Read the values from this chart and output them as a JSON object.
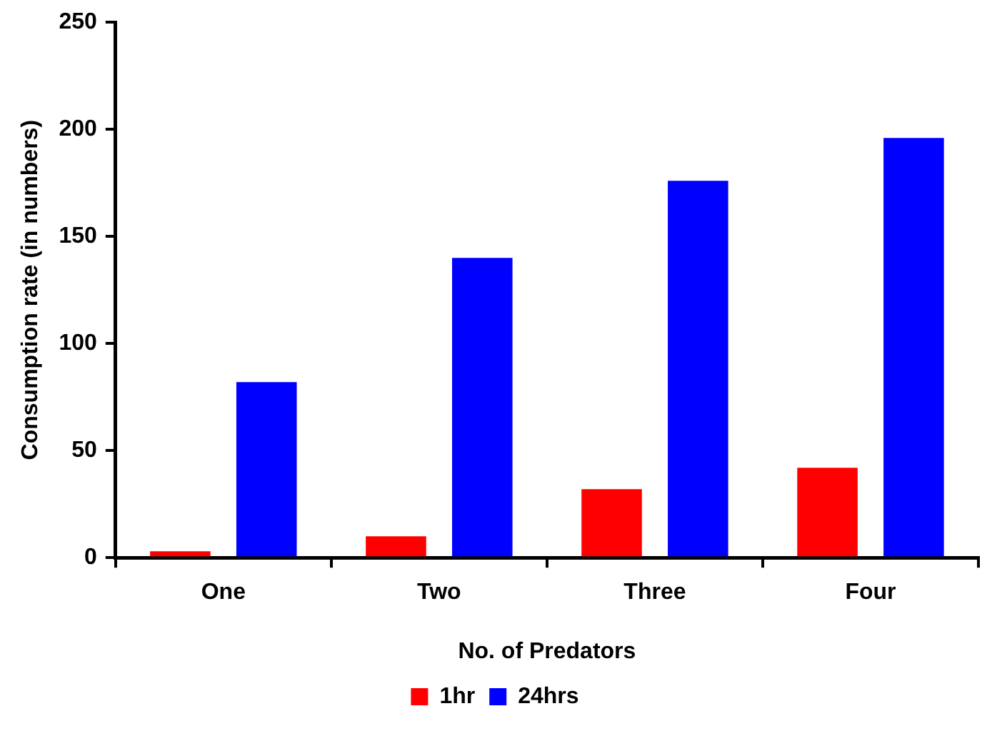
{
  "chart_data": {
    "type": "bar",
    "xlabel": "No. of Predators",
    "ylabel": "Consumption rate (in numbers)",
    "categories": [
      "One",
      "Two",
      "Three",
      "Four"
    ],
    "series": [
      {
        "name": "1hr",
        "color": "#ff0000",
        "values": [
          3,
          10,
          32,
          42
        ]
      },
      {
        "name": "24hrs",
        "color": "#0000ff",
        "values": [
          82,
          140,
          176,
          196
        ]
      }
    ],
    "ylim": [
      0,
      250
    ],
    "yticks": [
      0,
      50,
      100,
      150,
      200,
      250
    ],
    "grid": false,
    "legend": "bottom"
  }
}
